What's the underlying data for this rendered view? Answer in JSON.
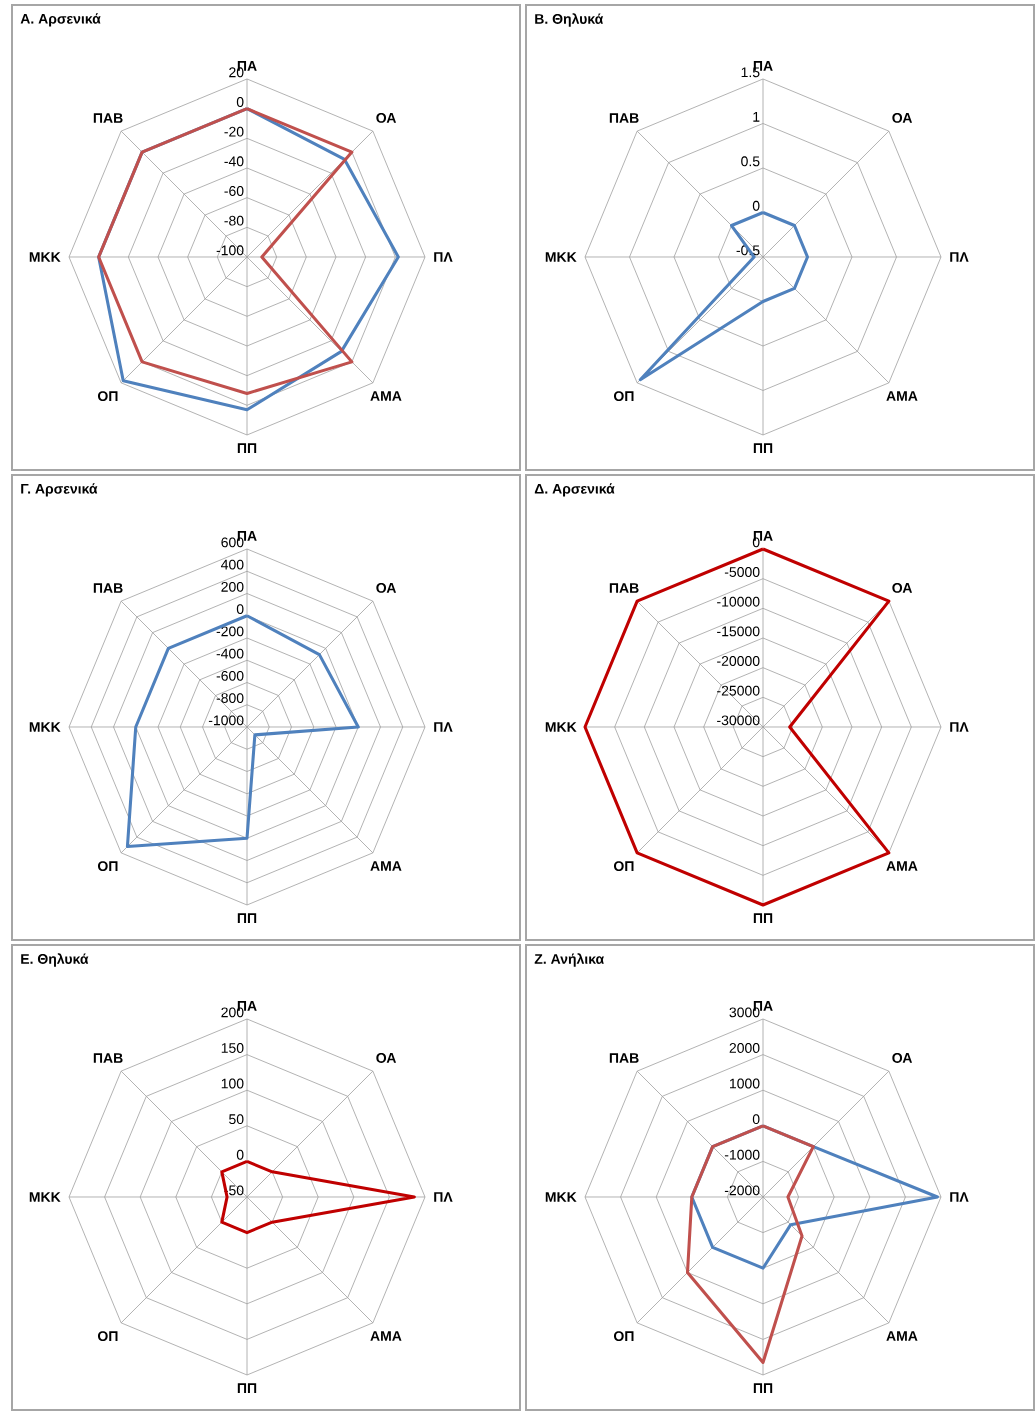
{
  "chart_data": [
    {
      "type": "radar",
      "title": "Α. Αρσενικά",
      "categories": [
        "ΠΑ",
        "ΟΑ",
        "ΠΛ",
        "ΑΜΑ",
        "ΠΠ",
        "ΟΠ",
        "ΜΚΚ",
        "ΠΑΒ"
      ],
      "ylim": [
        -100,
        20
      ],
      "yticks": [
        -100,
        -80,
        -60,
        -40,
        -20,
        0,
        20
      ],
      "grid": true,
      "series": [
        {
          "color": "#4f81bd",
          "values": [
            0,
            -7,
            2,
            -10,
            3,
            18,
            0,
            0
          ]
        },
        {
          "color": "#c0504d",
          "values": [
            0,
            0,
            -90,
            0,
            -8,
            0,
            0,
            0
          ]
        }
      ]
    },
    {
      "type": "radar",
      "title": "Β. Θηλυκά",
      "categories": [
        "ΠΑ",
        "ΟΑ",
        "ΠΛ",
        "ΑΜΑ",
        "ΠΠ",
        "ΟΠ",
        "ΜΚΚ",
        "ΠΑΒ"
      ],
      "ylim": [
        -0.5,
        1.5
      ],
      "yticks": [
        -0.5,
        0,
        0.5,
        1,
        1.5
      ],
      "grid": true,
      "series": [
        {
          "color": "#4f81bd",
          "values": [
            0,
            0,
            0,
            0,
            0,
            1.45,
            -0.4,
            0
          ]
        }
      ]
    },
    {
      "type": "radar",
      "title": "Γ. Αρσενικά",
      "categories": [
        "ΠΑ",
        "ΟΑ",
        "ΠΛ",
        "ΑΜΑ",
        "ΠΠ",
        "ΟΠ",
        "ΜΚΚ",
        "ΠΑΒ"
      ],
      "ylim": [
        -1000,
        600
      ],
      "yticks": [
        -1000,
        -800,
        -600,
        -400,
        -200,
        0,
        200,
        400,
        600
      ],
      "grid": true,
      "series": [
        {
          "color": "#4f81bd",
          "values": [
            0,
            -80,
            0,
            -900,
            0,
            520,
            0,
            0
          ]
        }
      ]
    },
    {
      "type": "radar",
      "title": "Δ. Αρσενικά",
      "categories": [
        "ΠΑ",
        "ΟΑ",
        "ΠΛ",
        "ΑΜΑ",
        "ΠΠ",
        "ΟΠ",
        "ΜΚΚ",
        "ΠΑΒ"
      ],
      "ylim": [
        -30000,
        0
      ],
      "yticks": [
        -30000,
        -25000,
        -20000,
        -15000,
        -10000,
        -5000,
        0
      ],
      "grid": true,
      "series": [
        {
          "color": "#c00000",
          "values": [
            0,
            0,
            -25500,
            0,
            0,
            0,
            0,
            0
          ]
        }
      ]
    },
    {
      "type": "radar",
      "title": "Ε. Θηλυκά",
      "categories": [
        "ΠΑ",
        "ΟΑ",
        "ΠΛ",
        "ΑΜΑ",
        "ΠΠ",
        "ΟΠ",
        "ΜΚΚ",
        "ΠΑΒ"
      ],
      "ylim": [
        -50,
        200
      ],
      "yticks": [
        -50,
        0,
        50,
        100,
        150,
        200
      ],
      "grid": true,
      "series": [
        {
          "color": "#c00000",
          "values": [
            0,
            0,
            185,
            0,
            0,
            0,
            -22,
            0
          ]
        }
      ]
    },
    {
      "type": "radar",
      "title": "Ζ. Ανήλικα",
      "categories": [
        "ΠΑ",
        "ΟΑ",
        "ΠΛ",
        "ΑΜΑ",
        "ΠΠ",
        "ΟΠ",
        "ΜΚΚ",
        "ΠΑΒ"
      ],
      "ylim": [
        -2000,
        3000
      ],
      "yticks": [
        -2000,
        -1000,
        0,
        1000,
        2000,
        3000
      ],
      "grid": true,
      "series": [
        {
          "color": "#4f81bd",
          "values": [
            0,
            0,
            2900,
            -900,
            0,
            0,
            0,
            0
          ]
        },
        {
          "color": "#c0504d",
          "values": [
            0,
            0,
            -1300,
            -450,
            2650,
            1000,
            0,
            0
          ]
        }
      ]
    }
  ]
}
